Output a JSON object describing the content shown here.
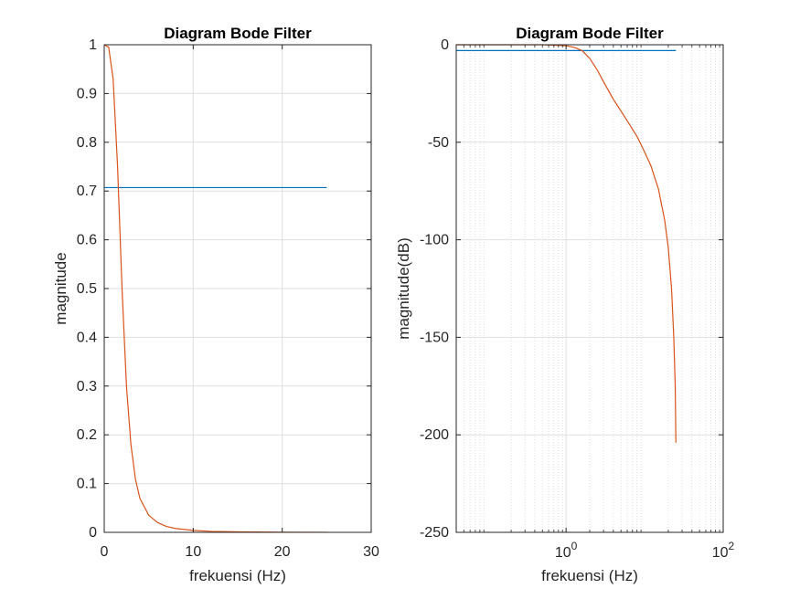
{
  "figure": {
    "background": "#ffffff",
    "axes_color": "#262626",
    "grid_color": "#dfdfdf"
  },
  "chart_data": [
    {
      "type": "line",
      "title": "Diagram Bode Filter",
      "xlabel": "frekuensi (Hz)",
      "ylabel": "magnitude",
      "xlim": [
        0,
        30
      ],
      "ylim": [
        0,
        1
      ],
      "xscale": "linear",
      "grid": true,
      "xticks": [
        0,
        10,
        20,
        30
      ],
      "xtick_labels": [
        "0",
        "10",
        "20",
        "30"
      ],
      "yticks": [
        0,
        0.1,
        0.2,
        0.3,
        0.4,
        0.5,
        0.6,
        0.7,
        0.8,
        0.9,
        1
      ],
      "ytick_labels": [
        "0",
        "0.1",
        "0.2",
        "0.3",
        "0.4",
        "0.5",
        "0.6",
        "0.7",
        "0.8",
        "0.9",
        "1"
      ],
      "series": [
        {
          "color": "#0072bd",
          "x": [
            0,
            25
          ],
          "y": [
            0.707,
            0.707
          ]
        },
        {
          "color": "#d95319",
          "x": [
            0,
            0.5,
            1,
            1.5,
            2,
            2.5,
            3,
            3.5,
            4,
            5,
            6,
            7,
            8,
            10,
            12,
            15,
            20,
            25
          ],
          "y": [
            1,
            0.995,
            0.93,
            0.75,
            0.5,
            0.3,
            0.18,
            0.11,
            0.07,
            0.035,
            0.02,
            0.012,
            0.008,
            0.004,
            0.002,
            0.001,
            0.0003,
            0.0001
          ]
        }
      ]
    },
    {
      "type": "line",
      "title": "Diagram Bode Filter",
      "xlabel": "frekuensi (Hz)",
      "ylabel": "magnitude(dB)",
      "xlim": [
        0.04,
        100
      ],
      "ylim": [
        -250,
        0
      ],
      "xscale": "log",
      "grid": true,
      "xticks": [
        1,
        100
      ],
      "xtick_labels": [
        {
          "base": "10",
          "exp": "0"
        },
        {
          "base": "10",
          "exp": "2"
        }
      ],
      "yticks": [
        0,
        -50,
        -100,
        -150,
        -200,
        -250
      ],
      "ytick_labels": [
        "0",
        "-50",
        "-100",
        "-150",
        "-200",
        "-250"
      ],
      "series": [
        {
          "color": "#0072bd",
          "x": [
            0.04,
            25
          ],
          "y": [
            -3,
            -3
          ]
        },
        {
          "color": "#d95319",
          "x": [
            0.04,
            0.5,
            1,
            1.3,
            1.6,
            2,
            2.5,
            3,
            4,
            5,
            6,
            8,
            10,
            12,
            15,
            18,
            20,
            22,
            23.5,
            24.5,
            25
          ],
          "y": [
            0,
            0,
            -0.5,
            -1.5,
            -3,
            -7,
            -13,
            -19,
            -28,
            -34,
            -39,
            -47,
            -55,
            -62,
            -74,
            -90,
            -104,
            -125,
            -150,
            -175,
            -204
          ]
        }
      ]
    }
  ]
}
